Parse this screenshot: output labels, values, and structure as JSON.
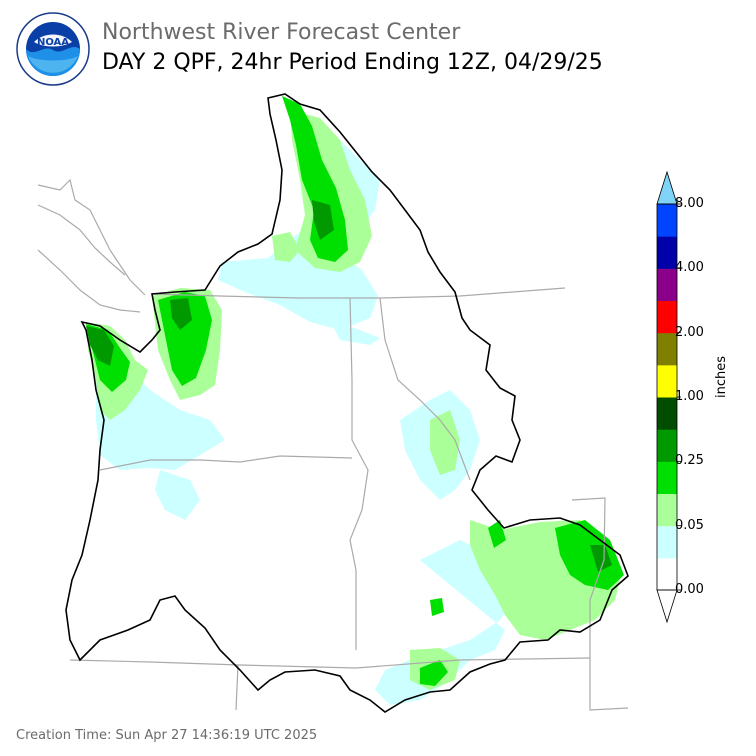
{
  "header": {
    "org": "Northwest River Forecast Center",
    "title": "DAY 2 QPF, 24hr Period Ending 12Z, 04/29/25"
  },
  "logo": {
    "text": "NOAA",
    "ring_text": "NATIONAL OCEANIC AND ATMOSPHERIC ADMINISTRATION · U.S. DEPARTMENT OF COMMERCE"
  },
  "legend": {
    "units": "inches",
    "labels": [
      "0.00",
      "0.05",
      "0.25",
      "1.00",
      "2.00",
      "4.00",
      "8.00"
    ],
    "colors": [
      "#ffffff",
      "#ccffff",
      "#aaff99",
      "#00e000",
      "#009900",
      "#004d00",
      "#ffff00",
      "#808000",
      "#ff0000",
      "#8b008b",
      "#0000a8",
      "#0044ff"
    ],
    "over_color": "#7fd4f7",
    "under_color": "#ffffff"
  },
  "map_colors": {
    "light_cyan": "#ccffff",
    "light_green": "#aaff99",
    "green": "#00e000",
    "dark_green": "#009900",
    "basin_outline": "#000000",
    "state_lines": "#aaaaaa"
  },
  "footer": {
    "creation": "Creation Time: Sun Apr 27 14:36:19 UTC 2025"
  }
}
